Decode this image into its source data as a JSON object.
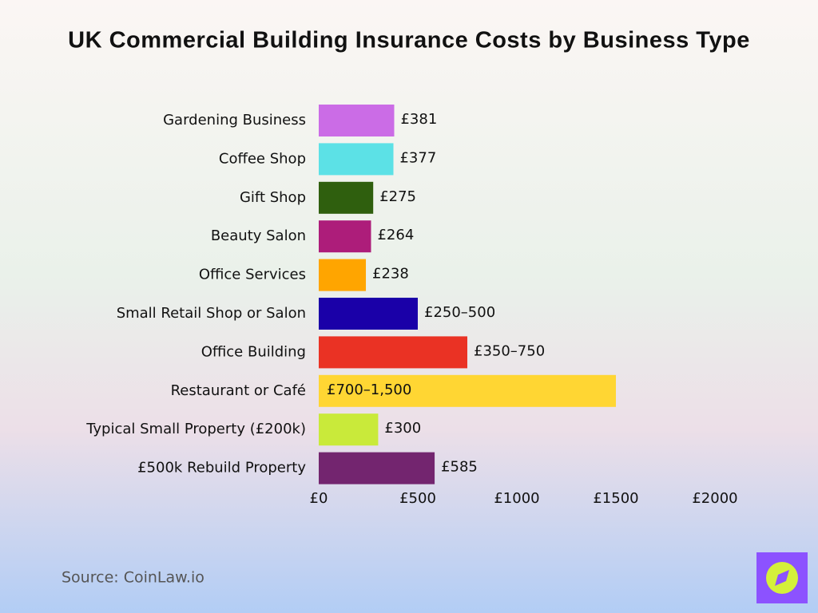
{
  "chart_data": {
    "type": "bar",
    "orientation": "horizontal",
    "title": "UK Commercial Building Insurance Costs by Business Type",
    "categories": [
      "Gardening Business",
      "Coffee Shop",
      "Gift Shop",
      "Beauty Salon",
      "Office Services",
      "Small Retail Shop or Salon",
      "Office Building",
      "Restaurant or Café",
      "Typical Small Property (£200k)",
      "£500k Rebuild Property"
    ],
    "values": [
      381,
      377,
      275,
      264,
      238,
      500,
      750,
      1500,
      300,
      585
    ],
    "value_labels": [
      "£381",
      "£377",
      "£275",
      "£264",
      "£238",
      "£250–500",
      "£350–750",
      "£700–1,500",
      "£300",
      "£585"
    ],
    "colors": [
      "#cb6ce6",
      "#5ce1e6",
      "#2f5f0e",
      "#ad1d7a",
      "#ffa500",
      "#1a00a8",
      "#ea3224",
      "#ffd633",
      "#c9ea3a",
      "#73256f"
    ],
    "xlim": [
      0,
      2000
    ],
    "xticks": [
      {
        "value": 0,
        "label": "£0"
      },
      {
        "value": 500,
        "label": "£500"
      },
      {
        "value": 1000,
        "label": "£1000"
      },
      {
        "value": 1500,
        "label": "£1500"
      },
      {
        "value": 2000,
        "label": "£2000"
      }
    ],
    "grid": false,
    "source": "Source: CoinLaw.io"
  }
}
